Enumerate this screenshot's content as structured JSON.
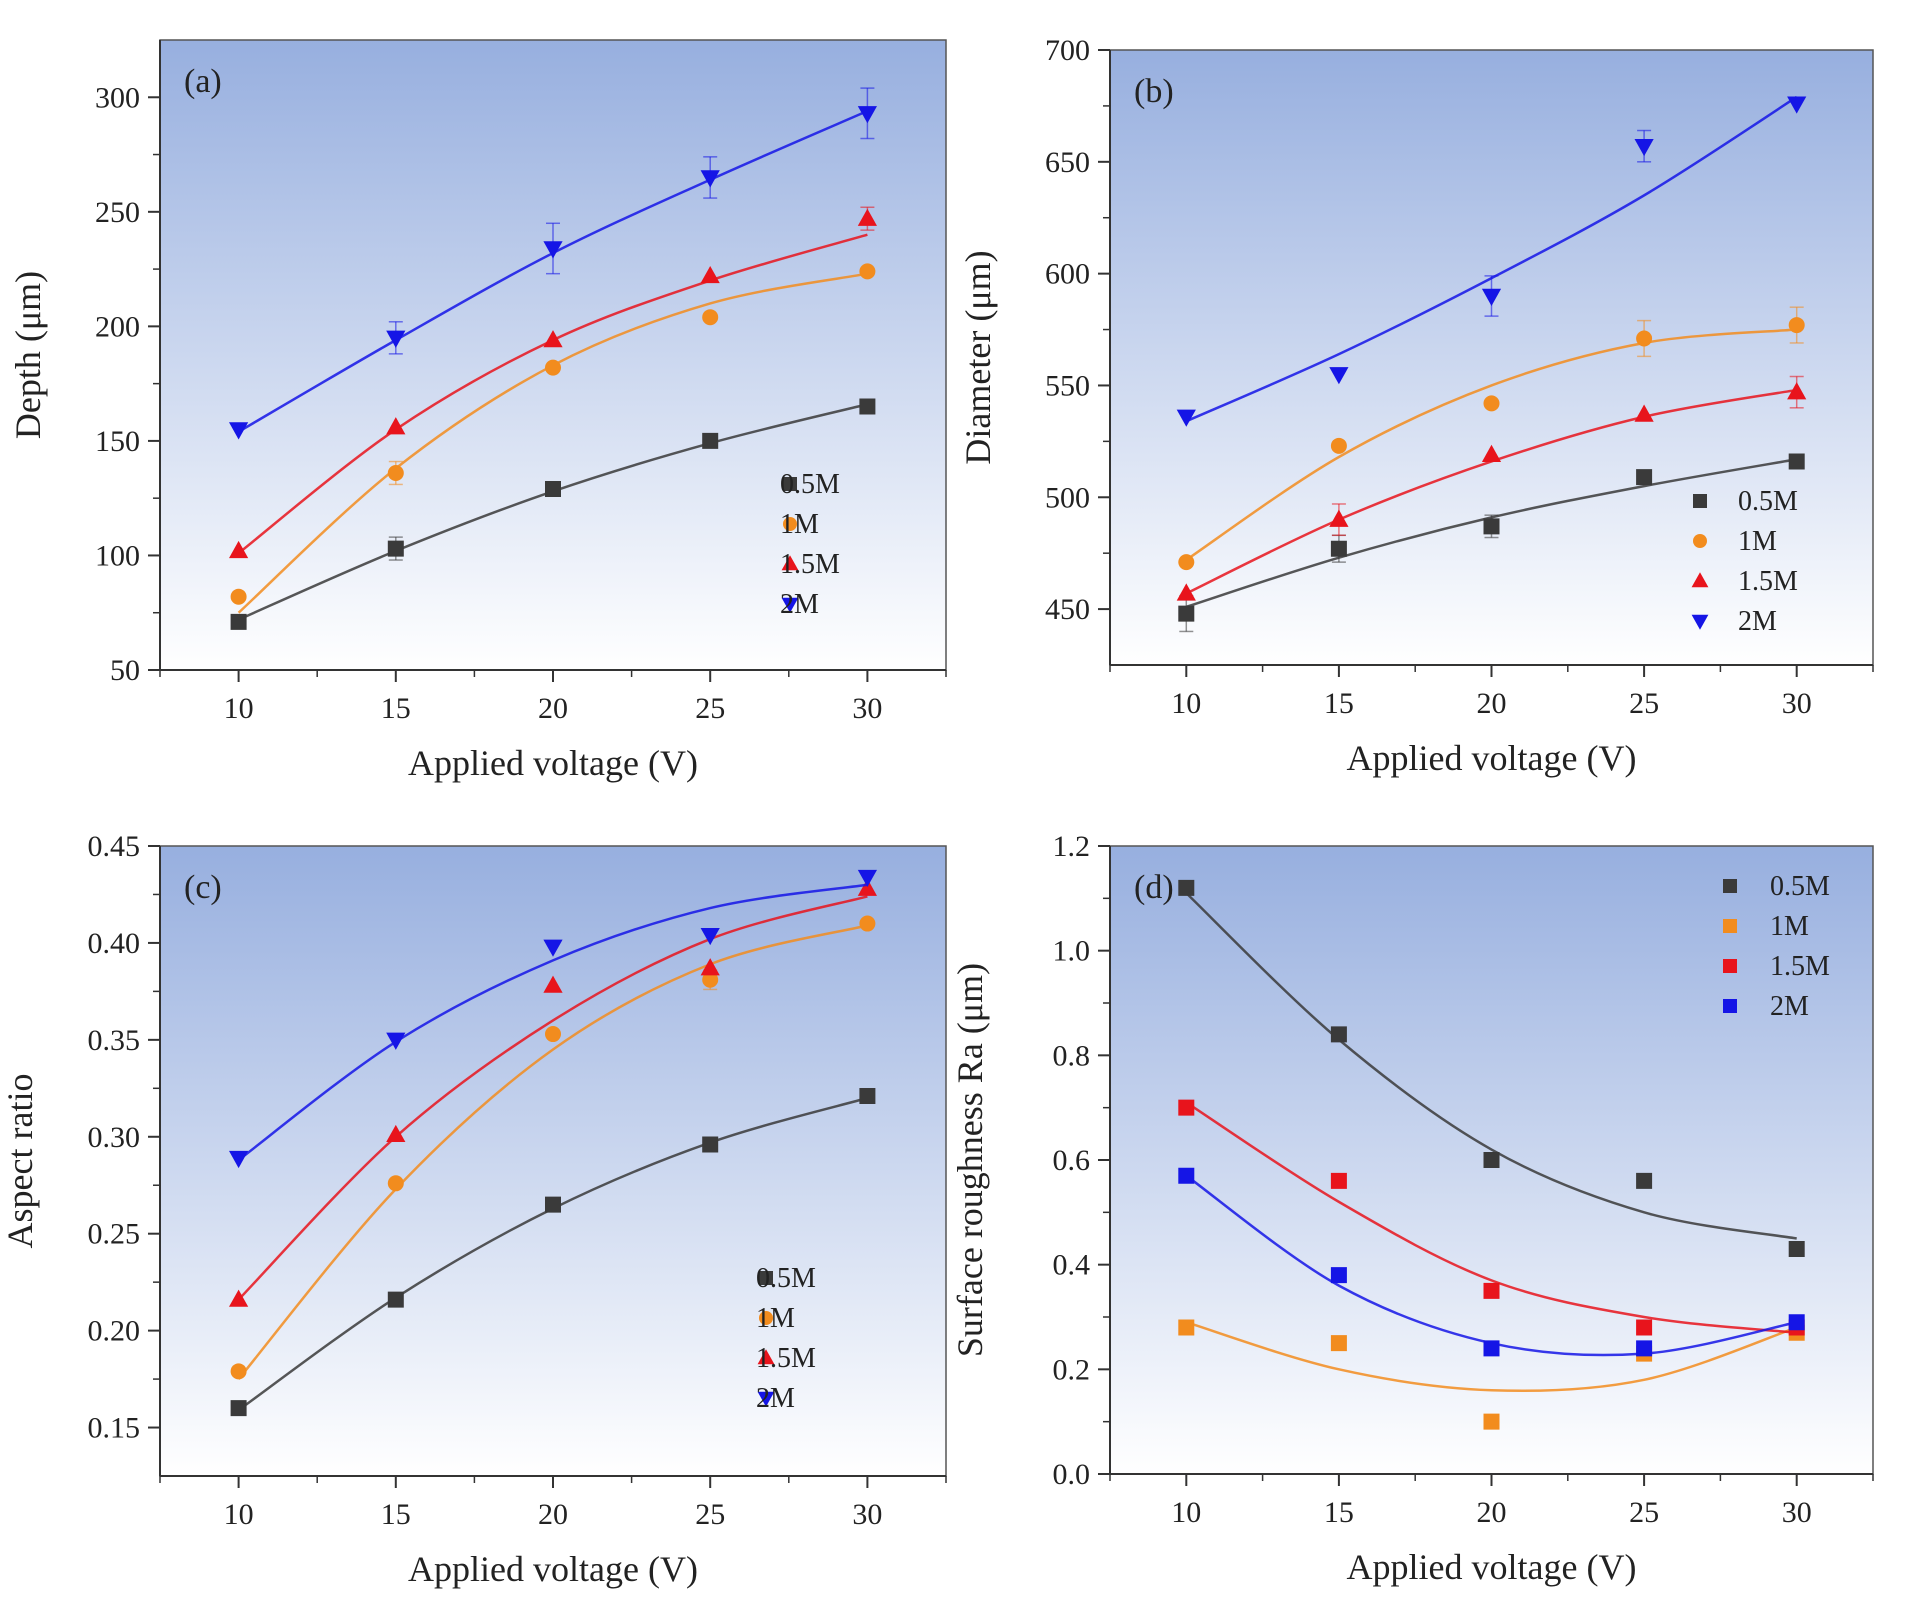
{
  "figure": {
    "colors": {
      "series": [
        "#3a3a3a",
        "#f28c1e",
        "#e8141c",
        "#1515e6"
      ],
      "panel_top": "#97afdf",
      "panel_bottom": "#ffffff"
    }
  },
  "chart_data": [
    {
      "id": "a",
      "panel_label": "(a)",
      "type": "scatter",
      "marker": "mixed",
      "xlabel": "Applied voltage (V)",
      "ylabel": "Depth (μm)",
      "xlim": [
        7.5,
        32.5
      ],
      "ylim": [
        50,
        325
      ],
      "xticks": [
        10,
        15,
        20,
        25,
        30
      ],
      "yticks": [
        50,
        100,
        150,
        200,
        250,
        300
      ],
      "tick_decimals": 0,
      "legend_position": "lower-right",
      "x": [
        10,
        15,
        20,
        25,
        30
      ],
      "series": [
        {
          "name": "0.5M",
          "marker": "square",
          "values": [
            71,
            103,
            129,
            150,
            165
          ],
          "fit": [
            72,
            102,
            128,
            149,
            166
          ],
          "err": [
            0,
            5,
            0,
            0,
            0
          ]
        },
        {
          "name": "1M",
          "marker": "circle",
          "values": [
            82,
            136,
            182,
            204,
            224
          ],
          "fit": [
            75,
            138,
            183,
            210,
            223
          ],
          "err": [
            0,
            5,
            0,
            0,
            0
          ]
        },
        {
          "name": "1.5M",
          "marker": "triangle-up",
          "values": [
            102,
            156,
            194,
            222,
            247
          ],
          "fit": [
            101,
            155,
            194,
            220,
            240
          ],
          "err": [
            0,
            0,
            0,
            0,
            5
          ]
        },
        {
          "name": "2M",
          "marker": "triangle-down",
          "values": [
            155,
            195,
            234,
            265,
            293
          ],
          "fit": [
            154,
            194,
            232,
            264,
            294
          ],
          "err": [
            0,
            7,
            11,
            9,
            11
          ]
        }
      ]
    },
    {
      "id": "b",
      "panel_label": "(b)",
      "type": "scatter",
      "marker": "mixed",
      "xlabel": "Applied voltage (V)",
      "ylabel": "Diameter (μm)",
      "xlim": [
        7.5,
        32.5
      ],
      "ylim": [
        425,
        700
      ],
      "xticks": [
        10,
        15,
        20,
        25,
        30
      ],
      "yticks": [
        450,
        500,
        550,
        600,
        650,
        700
      ],
      "tick_decimals": 0,
      "legend_position": "lower-right",
      "x": [
        10,
        15,
        20,
        25,
        30
      ],
      "series": [
        {
          "name": "0.5M",
          "marker": "square",
          "values": [
            448,
            477,
            487,
            509,
            516
          ],
          "fit": [
            451,
            473,
            491,
            505,
            517
          ],
          "err": [
            8,
            6,
            5,
            0,
            0
          ]
        },
        {
          "name": "1M",
          "marker": "circle",
          "values": [
            471,
            523,
            542,
            571,
            577
          ],
          "fit": [
            472,
            518,
            550,
            569,
            575
          ],
          "err": [
            0,
            0,
            0,
            8,
            8
          ]
        },
        {
          "name": "1.5M",
          "marker": "triangle-up",
          "values": [
            457,
            490,
            519,
            537,
            547
          ],
          "fit": [
            457,
            490,
            516,
            536,
            548
          ],
          "err": [
            0,
            7,
            0,
            0,
            7
          ]
        },
        {
          "name": "2M",
          "marker": "triangle-down",
          "values": [
            536,
            555,
            590,
            657,
            676
          ],
          "fit": [
            534,
            564,
            598,
            635,
            679
          ],
          "err": [
            0,
            0,
            9,
            7,
            0
          ]
        }
      ]
    },
    {
      "id": "c",
      "panel_label": "(c)",
      "type": "scatter",
      "marker": "mixed",
      "xlabel": "Applied voltage (V)",
      "ylabel": "Aspect ratio",
      "xlim": [
        7.5,
        32.5
      ],
      "ylim": [
        0.125,
        0.45
      ],
      "xticks": [
        10,
        15,
        20,
        25,
        30
      ],
      "yticks": [
        0.15,
        0.2,
        0.25,
        0.3,
        0.35,
        0.4,
        0.45
      ],
      "tick_decimals": 2,
      "legend_position": "lower-right",
      "x": [
        10,
        15,
        20,
        25,
        30
      ],
      "series": [
        {
          "name": "0.5M",
          "marker": "square",
          "values": [
            0.16,
            0.216,
            0.265,
            0.296,
            0.321
          ],
          "fit": [
            0.159,
            0.217,
            0.263,
            0.297,
            0.32
          ],
          "err": [
            0,
            0,
            0,
            0,
            0
          ]
        },
        {
          "name": "1M",
          "marker": "circle",
          "values": [
            0.179,
            0.276,
            0.353,
            0.381,
            0.41
          ],
          "fit": [
            0.175,
            0.273,
            0.345,
            0.389,
            0.409
          ],
          "err": [
            0,
            0,
            0,
            0.005,
            0
          ]
        },
        {
          "name": "1.5M",
          "marker": "triangle-up",
          "values": [
            0.216,
            0.301,
            0.378,
            0.387,
            0.428
          ],
          "fit": [
            0.216,
            0.3,
            0.36,
            0.402,
            0.424
          ],
          "err": [
            0,
            0,
            0,
            0,
            0
          ]
        },
        {
          "name": "2M",
          "marker": "triangle-down",
          "values": [
            0.289,
            0.35,
            0.398,
            0.404,
            0.434
          ],
          "fit": [
            0.288,
            0.349,
            0.391,
            0.418,
            0.43
          ],
          "err": [
            0,
            0,
            0,
            0,
            0
          ]
        }
      ]
    },
    {
      "id": "d",
      "panel_label": "(d)",
      "type": "scatter",
      "marker": "square",
      "xlabel": "Applied voltage (V)",
      "ylabel": "Surface roughness Ra (μm)",
      "xlim": [
        7.5,
        32.5
      ],
      "ylim": [
        0.0,
        1.2
      ],
      "xticks": [
        10,
        15,
        20,
        25,
        30
      ],
      "yticks": [
        0.0,
        0.2,
        0.4,
        0.6,
        0.8,
        1.0,
        1.2
      ],
      "tick_decimals": 1,
      "legend_position": "top-right",
      "x": [
        10,
        15,
        20,
        25,
        30
      ],
      "series": [
        {
          "name": "0.5M",
          "marker": "square",
          "values": [
            1.12,
            0.84,
            0.6,
            0.56,
            0.43
          ],
          "fit": [
            1.11,
            0.83,
            0.62,
            0.5,
            0.45
          ],
          "err": [
            0,
            0,
            0,
            0,
            0
          ]
        },
        {
          "name": "1M",
          "marker": "square",
          "values": [
            0.28,
            0.25,
            0.1,
            0.23,
            0.27
          ],
          "fit": [
            0.29,
            0.2,
            0.16,
            0.18,
            0.28
          ],
          "err": [
            0,
            0,
            0,
            0,
            0
          ]
        },
        {
          "name": "1.5M",
          "marker": "square",
          "values": [
            0.7,
            0.56,
            0.35,
            0.28,
            0.28
          ],
          "fit": [
            0.71,
            0.52,
            0.37,
            0.3,
            0.27
          ],
          "err": [
            0,
            0,
            0,
            0,
            0
          ]
        },
        {
          "name": "2M",
          "marker": "square",
          "values": [
            0.57,
            0.38,
            0.24,
            0.24,
            0.29
          ],
          "fit": [
            0.57,
            0.36,
            0.25,
            0.23,
            0.29
          ],
          "err": [
            0,
            0,
            0,
            0,
            0
          ]
        }
      ]
    }
  ]
}
